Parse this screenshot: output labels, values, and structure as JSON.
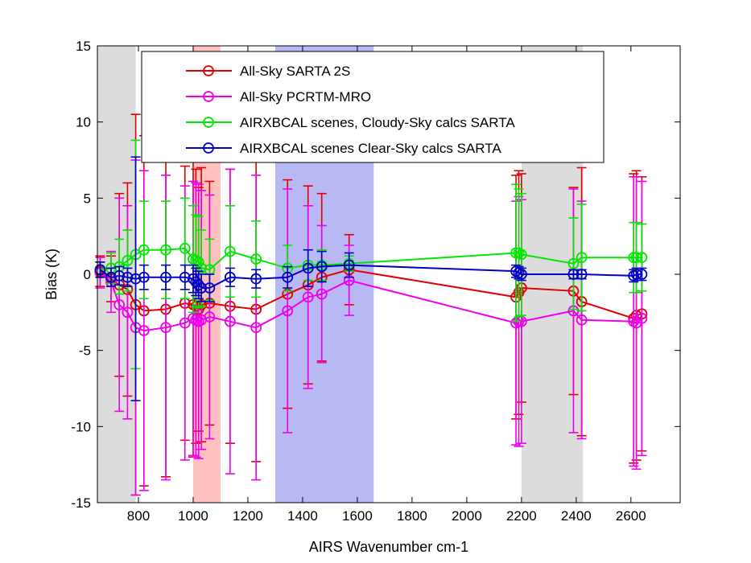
{
  "chart_data": {
    "type": "line",
    "title": "",
    "xlabel": "AIRS Wavenumber cm-1",
    "ylabel": "Bias (K)",
    "xlim": [
      650,
      2780
    ],
    "ylim": [
      -15,
      15
    ],
    "xticks": [
      800,
      1000,
      1200,
      1400,
      1600,
      1800,
      2000,
      2200,
      2400,
      2600
    ],
    "yticks": [
      -15,
      -10,
      -5,
      0,
      5,
      10,
      15
    ],
    "grid": false,
    "legend_position": "top",
    "shaded_bands": [
      {
        "x0": 650,
        "x1": 790,
        "color": "#dcdcdc"
      },
      {
        "x0": 1000,
        "x1": 1100,
        "color": "#ffc0c0"
      },
      {
        "x0": 1300,
        "x1": 1660,
        "color": "#b8b8f4"
      },
      {
        "x0": 2200,
        "x1": 2425,
        "color": "#dcdcdc"
      }
    ],
    "series": [
      {
        "name": "All-Sky SARTA 2S",
        "color": "#e00000",
        "x": [
          660,
          700,
          730,
          760,
          790,
          820,
          900,
          970,
          1000,
          1010,
          1020,
          1030,
          1060,
          1135,
          1230,
          1345,
          1420,
          1470,
          1570,
          2180,
          2190,
          2200,
          2390,
          2420,
          2610,
          2620,
          2640
        ],
        "y": [
          0.2,
          -0.3,
          -0.7,
          -1.0,
          -2.0,
          -2.4,
          -2.3,
          -1.9,
          -2.0,
          -2.1,
          -2.3,
          -2.0,
          -1.9,
          -2.1,
          -2.3,
          -1.3,
          -0.7,
          -0.2,
          0.3,
          -1.5,
          -1.2,
          -0.9,
          -1.1,
          -1.8,
          -2.9,
          -2.7,
          -2.6
        ],
        "err": [
          1.0,
          1.5,
          6.0,
          7.0,
          12.5,
          11.5,
          11.0,
          9.0,
          10.0,
          9.0,
          8.0,
          9.0,
          8.0,
          9.0,
          10.0,
          7.5,
          6.5,
          5.5,
          2.3,
          8.0,
          8.0,
          7.5,
          6.8,
          8.8,
          9.5,
          9.5,
          9.0
        ]
      },
      {
        "name": "All-Sky PCRTM-MRO",
        "color": "#ee00ee",
        "x": [
          660,
          700,
          730,
          760,
          790,
          820,
          900,
          970,
          1000,
          1010,
          1020,
          1030,
          1060,
          1135,
          1230,
          1345,
          1420,
          1470,
          1570,
          2180,
          2190,
          2200,
          2390,
          2420,
          2610,
          2620,
          2640
        ],
        "y": [
          0.1,
          -0.5,
          -2.0,
          -2.5,
          -3.5,
          -3.7,
          -3.5,
          -3.2,
          -2.9,
          -3.0,
          -3.1,
          -3.0,
          -2.8,
          -3.1,
          -3.5,
          -2.4,
          -1.5,
          -1.3,
          -0.4,
          -3.2,
          -3.1,
          -3.1,
          -2.4,
          -3.0,
          -3.1,
          -3.2,
          -2.9
        ],
        "err": [
          1.0,
          2.0,
          7.0,
          7.0,
          11.0,
          10.5,
          10.0,
          9.0,
          9.0,
          9.0,
          9.0,
          8.5,
          8.0,
          10.0,
          10.0,
          8.0,
          6.0,
          4.5,
          2.3,
          8.0,
          8.2,
          8.0,
          8.0,
          7.8,
          9.5,
          9.6,
          9.0
        ]
      },
      {
        "name": "AIRXBCAL scenes, Cloudy-Sky calcs SARTA",
        "color": "#00e800",
        "x": [
          660,
          700,
          730,
          760,
          790,
          820,
          900,
          970,
          1000,
          1010,
          1020,
          1030,
          1060,
          1135,
          1230,
          1345,
          1420,
          1470,
          1570,
          2180,
          2190,
          2200,
          2390,
          2420,
          2610,
          2620,
          2640
        ],
        "y": [
          0.3,
          0.4,
          0.5,
          0.9,
          1.3,
          1.6,
          1.6,
          1.7,
          1.0,
          0.9,
          0.8,
          0.4,
          0.3,
          1.5,
          1.0,
          0.4,
          0.6,
          0.6,
          0.7,
          1.4,
          1.4,
          1.3,
          0.7,
          1.1,
          1.1,
          1.1,
          1.1
        ],
        "err": [
          0.5,
          1.0,
          1.8,
          2.0,
          7.5,
          3.2,
          3.2,
          3.3,
          3.5,
          3.0,
          3.0,
          2.5,
          2.0,
          3.0,
          2.5,
          1.5,
          1.0,
          1.0,
          0.5,
          4.5,
          4.2,
          4.0,
          3.0,
          3.5,
          2.3,
          2.3,
          2.2
        ]
      },
      {
        "name": "AIRXBCAL scenes Clear-Sky calcs SARTA",
        "color": "#0000c8",
        "x": [
          660,
          700,
          730,
          760,
          790,
          820,
          900,
          970,
          1000,
          1010,
          1020,
          1030,
          1060,
          1135,
          1230,
          1345,
          1420,
          1470,
          1570,
          2180,
          2190,
          2200,
          2390,
          2420,
          2610,
          2620,
          2640
        ],
        "y": [
          0.3,
          -0.2,
          -0.1,
          -0.2,
          -0.3,
          -0.2,
          -0.2,
          -0.2,
          -0.3,
          -0.5,
          -0.7,
          -0.9,
          -0.9,
          -0.2,
          -0.3,
          -0.2,
          0.4,
          0.5,
          0.6,
          0.2,
          0.1,
          0.0,
          0.0,
          0.0,
          -0.1,
          0.0,
          0.0
        ],
        "err": [
          0.5,
          0.6,
          0.6,
          0.6,
          8.0,
          0.8,
          0.8,
          0.8,
          0.9,
          0.9,
          0.9,
          0.9,
          0.9,
          0.6,
          0.6,
          0.7,
          1.2,
          1.0,
          0.8,
          0.4,
          0.4,
          0.4,
          0.3,
          0.3,
          0.4,
          0.4,
          0.4
        ]
      }
    ]
  }
}
